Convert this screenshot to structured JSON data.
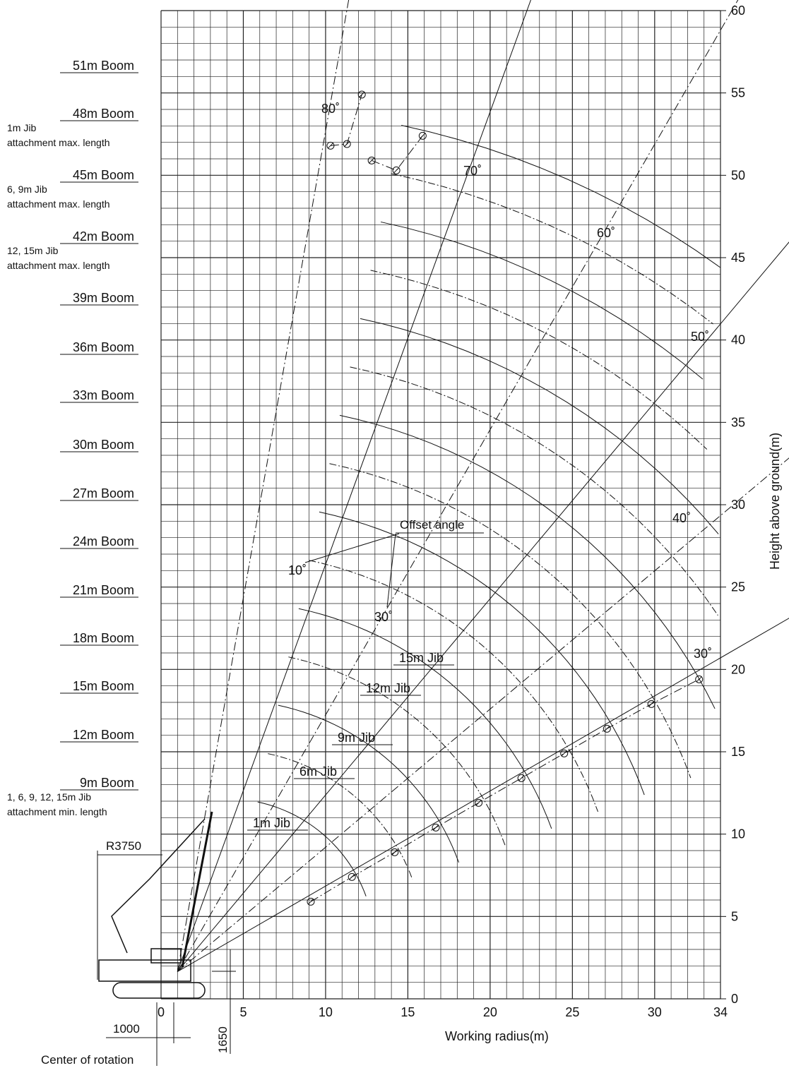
{
  "chart_data": {
    "type": "line",
    "title": "",
    "xlabel": "Working radius(m)",
    "ylabel": "Height above ground(m)",
    "xlim": [
      0,
      34
    ],
    "ylim": [
      0,
      60
    ],
    "x_ticks": [
      "0",
      "5",
      "10",
      "15",
      "20",
      "25",
      "30",
      "34"
    ],
    "y_ticks": [
      "0",
      "5",
      "10",
      "15",
      "20",
      "25",
      "30",
      "35",
      "40",
      "45",
      "50",
      "55",
      "60"
    ],
    "grid": true,
    "boom_tip_radius": 0.5,
    "boom_lengths": [
      9,
      12,
      15,
      18,
      21,
      24,
      27,
      30,
      33,
      36,
      39,
      42,
      45,
      48,
      51
    ],
    "boom_labels": [
      "51m Boom",
      "48m Boom",
      "45m Boom",
      "42m Boom",
      "39m Boom",
      "36m Boom",
      "33m Boom",
      "30m Boom",
      "27m Boom",
      "24m Boom",
      "21m Boom",
      "18m Boom",
      "15m Boom",
      "12m Boom",
      "9m Boom"
    ],
    "boom_notes": [
      {
        "boom": "48m Boom",
        "lines": [
          "1m Jib",
          "attachment max. length"
        ]
      },
      {
        "boom": "45m Boom",
        "lines": [
          "6, 9m Jib",
          "attachment max. length"
        ]
      },
      {
        "boom": "42m Boom",
        "lines": [
          "12, 15m Jib",
          "attachment max. length"
        ]
      },
      {
        "boom": "9m Boom",
        "lines": [
          "1, 6, 9, 12, 15m Jib",
          "attachment min. length"
        ]
      }
    ],
    "boom_angle_labels": [
      "80˚",
      "70˚",
      "60˚",
      "50˚",
      "40˚",
      "30˚"
    ],
    "offset_angle_labels": [
      "10˚",
      "30˚"
    ],
    "jib_labels": [
      "15m Jib",
      "12m Jib",
      "9m Jib",
      "6m Jib",
      "1m Jib"
    ],
    "offset_angle_text": "Offset angle",
    "dimension_labels": {
      "tail_radius": "R3750",
      "pivot_offset": "1000",
      "pivot_height": "1650",
      "center": "Center of rotation"
    },
    "series": [
      {
        "name": "30˚",
        "x": [
          9.1,
          11.6,
          14.2,
          16.7,
          19.3,
          21.9,
          24.5,
          27.1,
          29.8,
          32.7
        ],
        "y": [
          5.9,
          7.4,
          8.9,
          10.4,
          11.9,
          13.4,
          14.9,
          16.4,
          17.9,
          19.4
        ]
      },
      {
        "name": "80˚",
        "x": [
          10.3,
          11.3,
          12.2
        ],
        "y": [
          51.8,
          51.9,
          54.9
        ]
      },
      {
        "name": "70˚",
        "x": [
          12.8,
          14.3,
          15.9
        ],
        "y": [
          50.9,
          50.3,
          52.4
        ]
      }
    ]
  }
}
